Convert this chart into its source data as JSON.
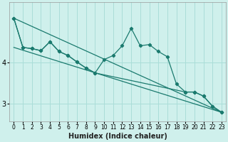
{
  "xlabel": "Humidex (Indice chaleur)",
  "bg_color": "#cff0ec",
  "line_color": "#1a7a6e",
  "grid_color": "#aaddd8",
  "x_ticks": [
    0,
    1,
    2,
    3,
    4,
    5,
    6,
    7,
    8,
    9,
    10,
    11,
    12,
    13,
    14,
    15,
    16,
    17,
    18,
    19,
    20,
    21,
    22,
    23
  ],
  "y_ticks": [
    3,
    4
  ],
  "xlim": [
    -0.5,
    23.5
  ],
  "ylim": [
    2.55,
    5.5
  ],
  "series": [
    {
      "x": [
        0,
        1,
        2,
        3,
        4,
        5,
        6,
        7,
        8,
        9,
        10,
        11,
        12,
        13,
        14,
        15,
        16,
        17,
        18,
        19,
        20,
        21,
        22,
        23
      ],
      "y": [
        5.1,
        4.38,
        4.35,
        4.3,
        4.52,
        4.28,
        4.18,
        4.02,
        3.87,
        3.75,
        4.08,
        4.18,
        4.42,
        4.85,
        4.42,
        4.45,
        4.28,
        4.15,
        3.48,
        3.28,
        3.28,
        3.18,
        2.93,
        2.78
      ],
      "with_markers": true
    },
    {
      "x": [
        0,
        23
      ],
      "y": [
        5.1,
        2.78
      ],
      "with_markers": false
    },
    {
      "x": [
        0,
        23
      ],
      "y": [
        4.38,
        2.78
      ],
      "with_markers": false
    },
    {
      "x": [
        0,
        1,
        2,
        3,
        4,
        5,
        6,
        7,
        8,
        9,
        19,
        20,
        21,
        22,
        23
      ],
      "y": [
        5.1,
        4.38,
        4.35,
        4.3,
        4.52,
        4.28,
        4.18,
        4.02,
        3.87,
        3.75,
        3.28,
        3.28,
        3.18,
        2.93,
        2.78
      ],
      "with_markers": true
    }
  ]
}
